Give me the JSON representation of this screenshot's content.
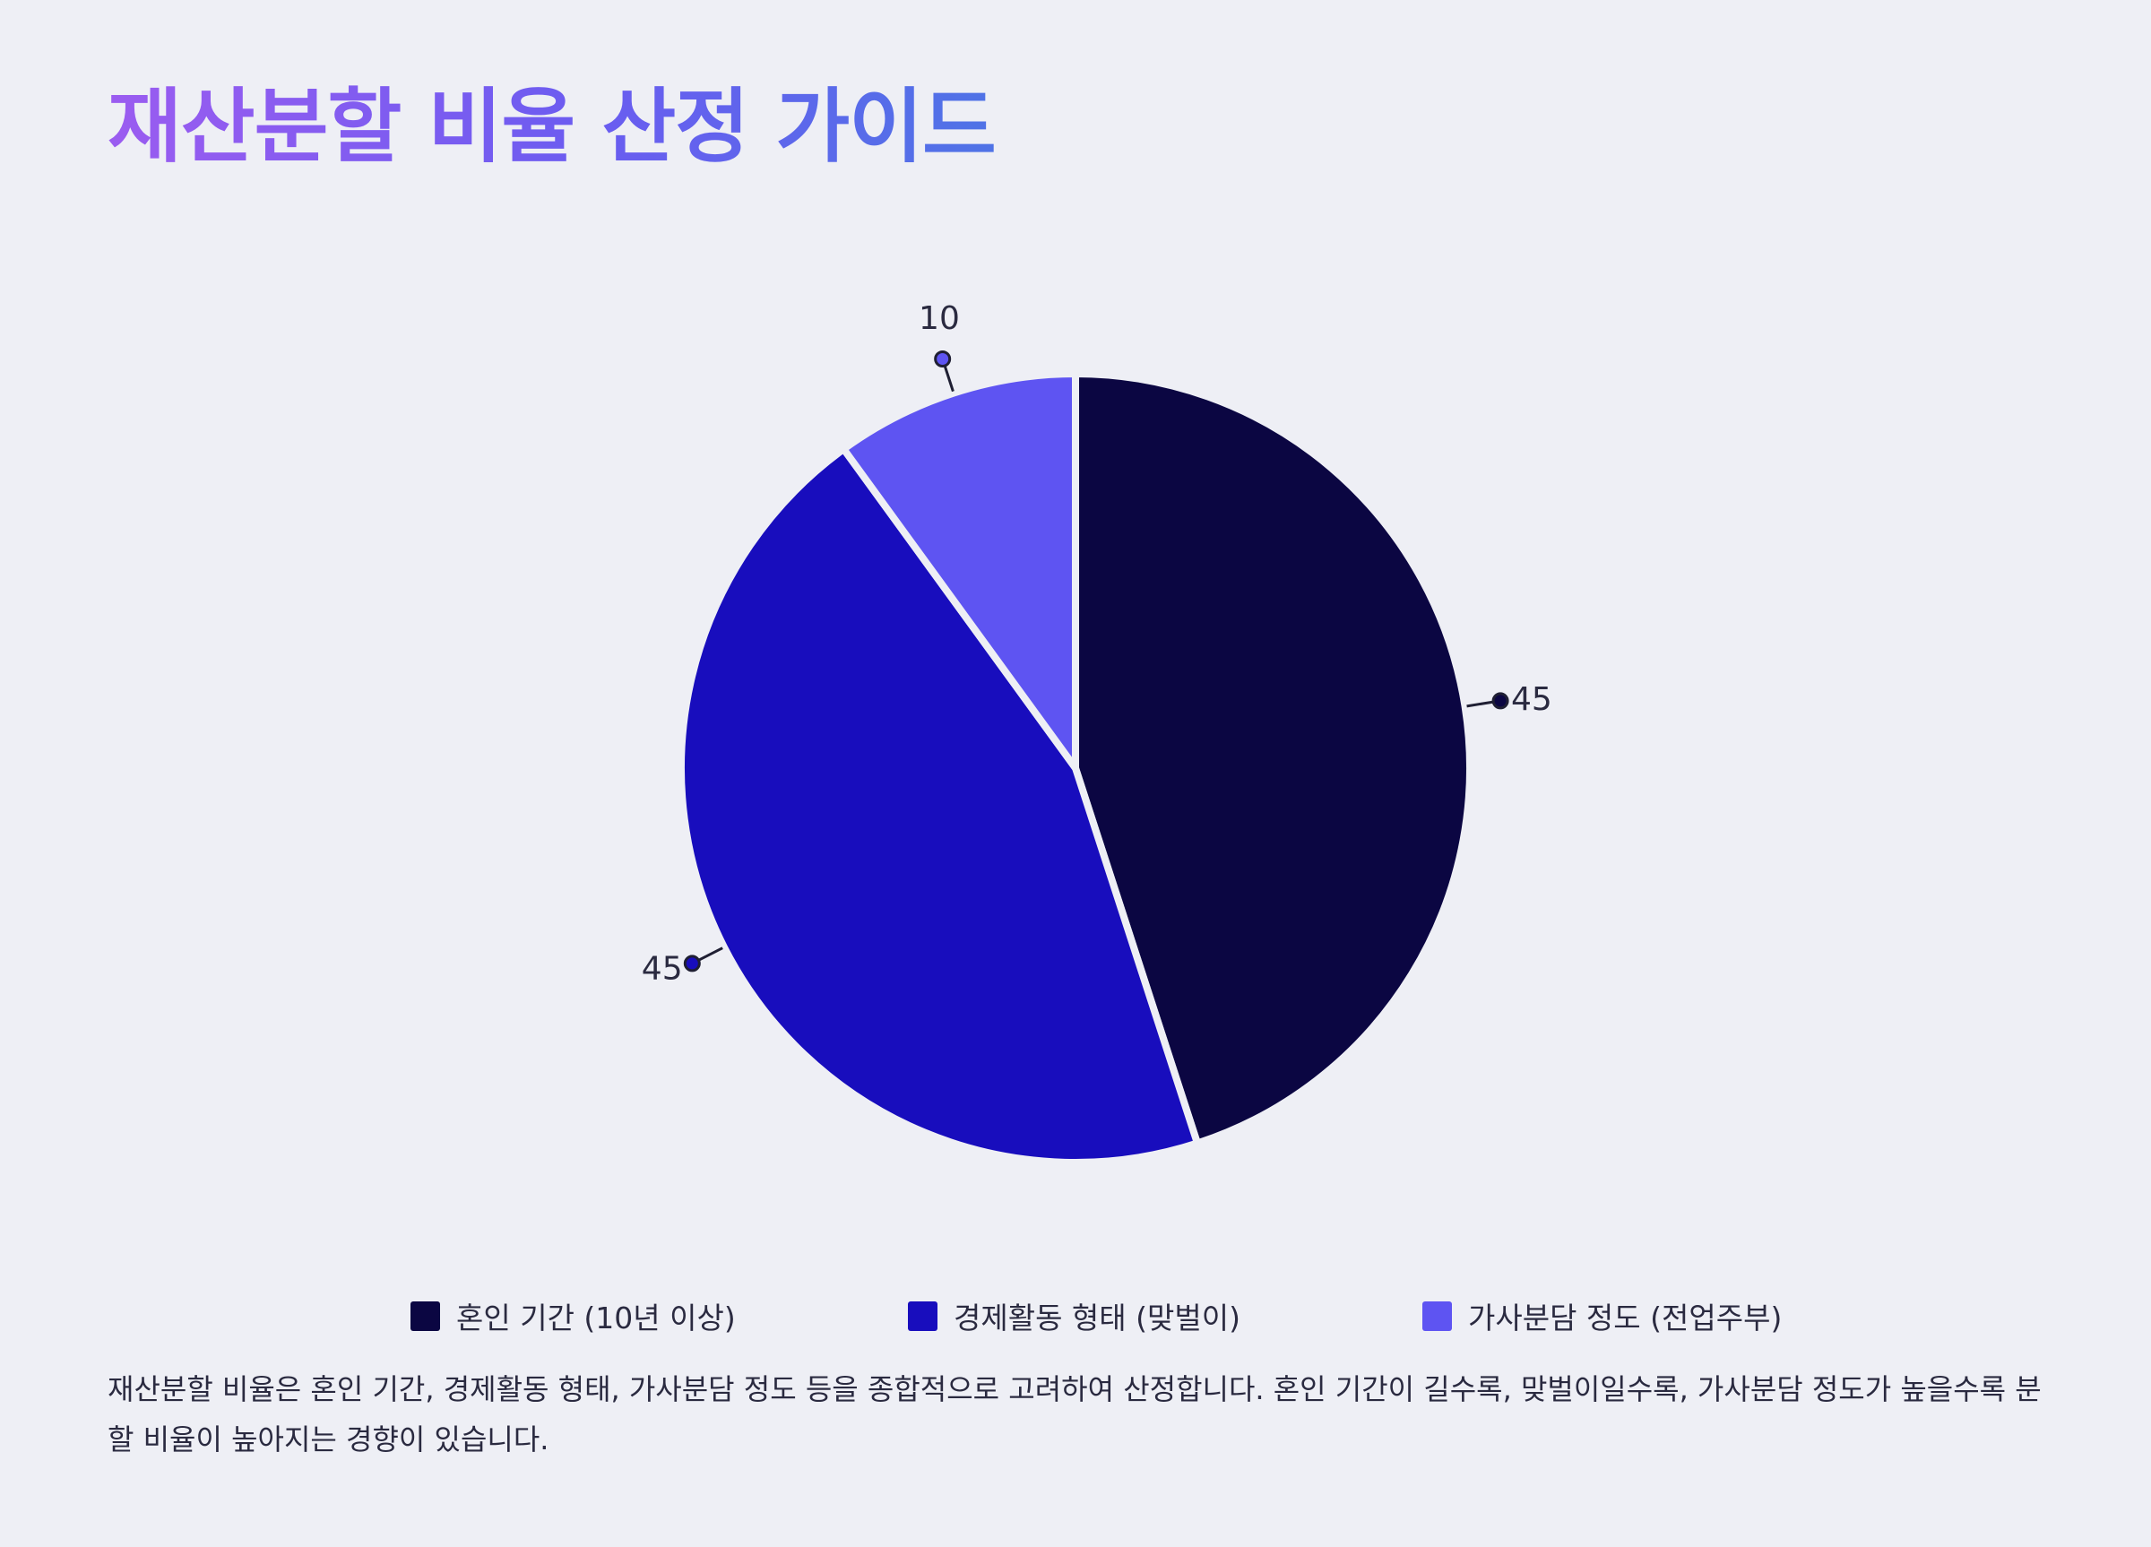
{
  "title": "재산분할 비율 산정 가이드",
  "chart_data": {
    "type": "pie",
    "categories": [
      "혼인 기간 (10년 이상)",
      "경제활동 형태 (맞벌이)",
      "가사분담 정도 (전업주부)"
    ],
    "values": [
      45,
      45,
      10
    ],
    "colors": [
      "#0b0642",
      "#180dbd",
      "#5e54f2"
    ],
    "legend_position": "bottom",
    "data_labels": [
      "45",
      "45",
      "10"
    ]
  },
  "description": "재산분할 비율은 혼인 기간, 경제활동 형태, 가사분담 정도 등을 종합적으로 고려하여 산정합니다. 혼인 기간이 길수록, 맞벌이일수록, 가사분담 정도가 높을수록 분할 비율이 높아지는 경향이 있습니다."
}
